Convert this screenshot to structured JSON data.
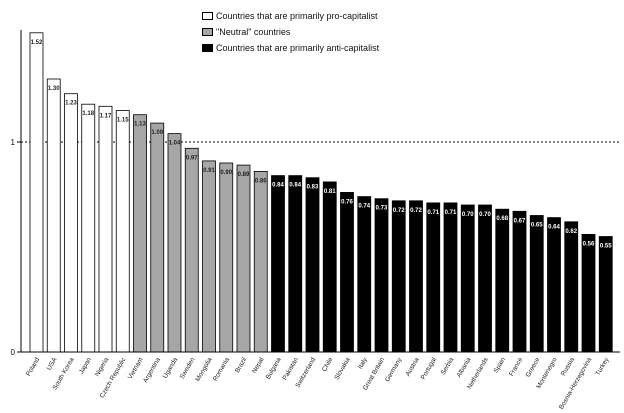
{
  "chart_data": {
    "type": "bar",
    "title": "",
    "xlabel": "",
    "ylabel": "",
    "ylim": [
      0,
      1.6
    ],
    "yticks": [
      0,
      1
    ],
    "reference_line": 1,
    "legend": [
      {
        "key": "pro",
        "label": "Countries that are primarily pro-capitalist",
        "color": "#ffffff"
      },
      {
        "key": "neutral",
        "label": "\"Neutral\" countries",
        "color": "#a6a6a6"
      },
      {
        "key": "anti",
        "label": "Countries that are primarily anti-capitalist",
        "color": "#000000"
      }
    ],
    "categories": [
      "Poland",
      "USA",
      "South Korea",
      "Japan",
      "Nigeria",
      "Czech Republic",
      "Vietnam",
      "Argentina",
      "Uganda",
      "Sweden",
      "Mongolia",
      "Romania",
      "Brazil",
      "Nepal",
      "Bulgaria",
      "Pakistan",
      "Switzerland",
      "Chile",
      "Slovakia",
      "Italy",
      "Great Britain",
      "Germany",
      "Austria",
      "Portugal",
      "Serbia",
      "Albania",
      "Netherlands",
      "Spain",
      "France",
      "Greece",
      "Montenegro",
      "Russia",
      "Bosnia-Herzegovina",
      "Turkey"
    ],
    "values": [
      1.52,
      1.3,
      1.23,
      1.18,
      1.17,
      1.15,
      1.13,
      1.09,
      1.04,
      0.97,
      0.91,
      0.9,
      0.89,
      0.86,
      0.84,
      0.84,
      0.83,
      0.81,
      0.76,
      0.74,
      0.73,
      0.72,
      0.72,
      0.71,
      0.71,
      0.7,
      0.7,
      0.68,
      0.67,
      0.65,
      0.64,
      0.62,
      0.56,
      0.55
    ],
    "value_labels": [
      "1.52",
      "1.30",
      "1.23",
      "1.18",
      "1.17",
      "1.15",
      "1.13",
      "1.09",
      "1.04",
      "0.97",
      "0.91",
      "0.90",
      "0.89",
      "0.86",
      "0.84",
      "0.84",
      "0.83",
      "0.81",
      "0.76",
      "0.74",
      "0.73",
      "0.72",
      "0.72",
      "0.71",
      "0.71",
      "0.70",
      "0.70",
      "0.68",
      "0.67",
      "0.65",
      "0.64",
      "0.62",
      "0.56",
      "0.55"
    ],
    "groups": [
      "pro",
      "pro",
      "pro",
      "pro",
      "pro",
      "pro",
      "neutral",
      "neutral",
      "neutral",
      "neutral",
      "neutral",
      "neutral",
      "neutral",
      "neutral",
      "anti",
      "anti",
      "anti",
      "anti",
      "anti",
      "anti",
      "anti",
      "anti",
      "anti",
      "anti",
      "anti",
      "anti",
      "anti",
      "anti",
      "anti",
      "anti",
      "anti",
      "anti",
      "anti",
      "anti"
    ]
  }
}
